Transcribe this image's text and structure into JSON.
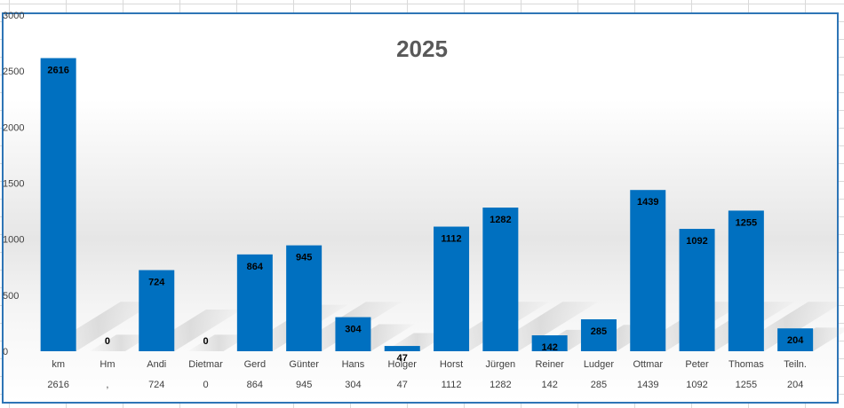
{
  "chart_data": {
    "type": "bar",
    "title": "2025",
    "xlabel": "",
    "ylabel": "",
    "ylim": [
      0,
      3000
    ],
    "yticks": [
      0,
      500,
      1000,
      1500,
      2000,
      2500,
      3000
    ],
    "grid": false,
    "legend": "none",
    "categories": [
      "km",
      "Hm",
      "Andi",
      "Dietmar",
      "Gerd",
      "Günter",
      "Hans",
      "Holger",
      "Horst",
      "Jürgen",
      "Reiner",
      "Ludger",
      "Ottmar",
      "Peter",
      "Thomas",
      "Teiln."
    ],
    "values": [
      2616,
      0,
      724,
      0,
      864,
      945,
      304,
      47,
      1112,
      1282,
      142,
      285,
      1439,
      1092,
      1255,
      204
    ],
    "table_row": [
      "2616",
      ",",
      "724",
      "0",
      "864",
      "945",
      "304",
      "47",
      "1112",
      "1282",
      "142",
      "285",
      "1439",
      "1092",
      "1255",
      "204"
    ],
    "bar_color": "#0070c0"
  }
}
